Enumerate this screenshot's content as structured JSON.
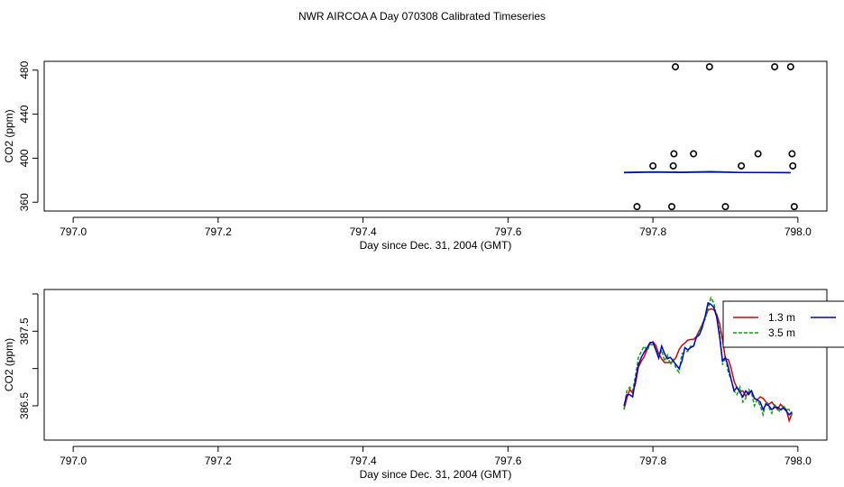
{
  "title": "NWR AIRCOA A  Day 070308  Calibrated Timeseries",
  "chart_data": [
    {
      "type": "scatter",
      "xlabel": "Day since Dec. 31, 2004 (GMT)",
      "ylabel": "CO2 (ppm)",
      "xlim": [
        796.96,
        798.04
      ],
      "ylim": [
        352,
        488
      ],
      "x_ticks": [
        797.0,
        797.2,
        797.4,
        797.6,
        797.8,
        798.0
      ],
      "x_tick_labels": [
        "797.0",
        "797.2",
        "797.4",
        "797.6",
        "797.8",
        "798.0"
      ],
      "y_ticks": [
        360,
        400,
        440,
        480
      ],
      "y_tick_labels": [
        "360",
        "400",
        "440",
        "480"
      ],
      "grid": false,
      "series": [
        {
          "color": "#000000",
          "marker": "open-circle",
          "x": [
            797.778,
            797.8,
            797.826,
            797.828,
            797.829,
            797.831,
            797.856,
            797.878,
            797.9,
            797.922,
            797.945,
            797.968,
            797.99,
            797.992,
            797.993,
            797.995
          ],
          "y": [
            356,
            393,
            356,
            393,
            404,
            483,
            404,
            483,
            356,
            393,
            404,
            483,
            483,
            404,
            393,
            356
          ]
        },
        {
          "color": "#009900",
          "marker": "line",
          "x": [
            797.76,
            797.8,
            797.84,
            797.88,
            797.92,
            797.96,
            797.99
          ],
          "y": [
            387.2,
            387.6,
            387.3,
            388.0,
            387.1,
            387.0,
            386.9
          ]
        },
        {
          "color": "#0000cc",
          "marker": "line",
          "x": [
            797.76,
            797.8,
            797.84,
            797.88,
            797.92,
            797.96,
            797.99
          ],
          "y": [
            386.8,
            387.3,
            387.1,
            387.5,
            387.0,
            386.9,
            386.8
          ]
        }
      ]
    },
    {
      "type": "line",
      "xlabel": "Day since Dec. 31, 2004 (GMT)",
      "ylabel": "CO2 (ppm)",
      "xlim": [
        796.96,
        798.04
      ],
      "ylim": [
        386.04,
        388.06
      ],
      "x_ticks": [
        797.0,
        797.2,
        797.4,
        797.6,
        797.8,
        798.0
      ],
      "x_tick_labels": [
        "797.0",
        "797.2",
        "797.4",
        "797.6",
        "797.8",
        "798.0"
      ],
      "y_ticks": [
        386.5,
        387.0,
        387.5,
        388.0
      ],
      "y_tick_labels": [
        "386.5",
        "",
        "387.5",
        ""
      ],
      "legend_position": "top-right",
      "grid": false,
      "series": [
        {
          "name": "1.3 m",
          "color": "#dd0000",
          "dash": "solid",
          "x": [
            797.76,
            797.764,
            797.768,
            797.772,
            797.776,
            797.78,
            797.784,
            797.788,
            797.792,
            797.796,
            797.8,
            797.804,
            797.808,
            797.812,
            797.816,
            797.82,
            797.824,
            797.828,
            797.832,
            797.836,
            797.84,
            797.844,
            797.848,
            797.852,
            797.856,
            797.86,
            797.864,
            797.868,
            797.872,
            797.876,
            797.88,
            797.884,
            797.888,
            797.892,
            797.896,
            797.9,
            797.904,
            797.908,
            797.912,
            797.916,
            797.92,
            797.924,
            797.928,
            797.932,
            797.936,
            797.94,
            797.944,
            797.948,
            797.952,
            797.956,
            797.96,
            797.964,
            797.968,
            797.972,
            797.976,
            797.98,
            797.984,
            797.988,
            797.992
          ],
          "y": [
            386.45,
            386.6,
            386.72,
            386.67,
            386.8,
            387.02,
            387.1,
            387.16,
            387.26,
            387.34,
            387.36,
            387.31,
            387.2,
            387.13,
            387.08,
            387.08,
            387.08,
            387.1,
            387.15,
            387.25,
            387.31,
            387.34,
            387.38,
            387.39,
            387.39,
            387.43,
            387.51,
            387.59,
            387.69,
            387.78,
            387.8,
            387.79,
            387.73,
            387.6,
            387.39,
            387.13,
            387.12,
            387.0,
            386.83,
            386.74,
            386.69,
            386.7,
            386.63,
            386.68,
            386.7,
            386.6,
            386.58,
            386.62,
            386.6,
            386.55,
            386.52,
            386.55,
            386.5,
            386.45,
            386.52,
            386.48,
            386.45,
            386.3,
            386.4
          ]
        },
        {
          "name": "3.5 m",
          "color": "#00aa00",
          "dash": "dashed",
          "x": [
            797.76,
            797.764,
            797.768,
            797.772,
            797.776,
            797.78,
            797.784,
            797.788,
            797.792,
            797.796,
            797.8,
            797.804,
            797.808,
            797.812,
            797.816,
            797.82,
            797.824,
            797.828,
            797.832,
            797.836,
            797.84,
            797.844,
            797.848,
            797.852,
            797.856,
            797.86,
            797.864,
            797.868,
            797.872,
            797.876,
            797.88,
            797.884,
            797.888,
            797.892,
            797.896,
            797.9,
            797.904,
            797.908,
            797.912,
            797.916,
            797.92,
            797.924,
            797.928,
            797.932,
            797.936,
            797.94,
            797.944,
            797.948,
            797.952,
            797.956,
            797.96,
            797.964,
            797.968,
            797.972,
            797.976,
            797.98,
            797.984,
            797.988,
            797.992
          ],
          "y": [
            386.45,
            386.7,
            386.75,
            386.7,
            386.9,
            387.15,
            387.23,
            387.3,
            387.24,
            387.32,
            387.32,
            387.28,
            387.15,
            387.25,
            387.1,
            387.18,
            387.05,
            387.12,
            387.0,
            386.95,
            387.2,
            387.22,
            387.23,
            387.3,
            387.29,
            387.42,
            387.48,
            387.6,
            387.66,
            387.8,
            387.95,
            387.88,
            387.69,
            387.5,
            387.05,
            387.15,
            386.95,
            386.85,
            386.7,
            386.65,
            386.75,
            386.55,
            386.6,
            386.72,
            386.68,
            386.5,
            386.58,
            386.5,
            386.38,
            386.55,
            386.48,
            386.4,
            386.52,
            386.45,
            386.42,
            386.5,
            386.45,
            386.45,
            386.35
          ]
        },
        {
          "color": "#0000dd",
          "dash": "solid",
          "x": [
            797.76,
            797.764,
            797.768,
            797.772,
            797.776,
            797.78,
            797.784,
            797.788,
            797.792,
            797.796,
            797.8,
            797.804,
            797.808,
            797.812,
            797.816,
            797.82,
            797.824,
            797.828,
            797.832,
            797.836,
            797.84,
            797.844,
            797.848,
            797.852,
            797.856,
            797.86,
            797.864,
            797.868,
            797.872,
            797.876,
            797.88,
            797.884,
            797.888,
            797.892,
            797.896,
            797.9,
            797.904,
            797.908,
            797.912,
            797.916,
            797.92,
            797.924,
            797.928,
            797.932,
            797.936,
            797.94,
            797.944,
            797.948,
            797.952,
            797.956,
            797.96,
            797.964,
            797.968,
            797.972,
            797.976,
            797.98,
            797.984,
            797.988,
            797.992
          ],
          "y": [
            386.5,
            386.65,
            386.65,
            386.62,
            386.85,
            387.05,
            387.15,
            387.22,
            387.28,
            387.35,
            387.35,
            387.25,
            387.14,
            387.3,
            387.2,
            387.13,
            387.15,
            387.1,
            387.05,
            387.0,
            387.1,
            387.28,
            387.25,
            387.28,
            387.3,
            387.42,
            387.45,
            387.55,
            387.7,
            387.88,
            387.86,
            387.82,
            387.69,
            387.42,
            387.1,
            387.15,
            387.02,
            386.85,
            386.7,
            386.75,
            386.68,
            386.62,
            386.7,
            386.65,
            386.7,
            386.6,
            386.58,
            386.55,
            386.45,
            386.52,
            386.5,
            386.45,
            386.48,
            386.48,
            386.45,
            386.47,
            386.43,
            386.38,
            386.42
          ]
        }
      ]
    }
  ]
}
